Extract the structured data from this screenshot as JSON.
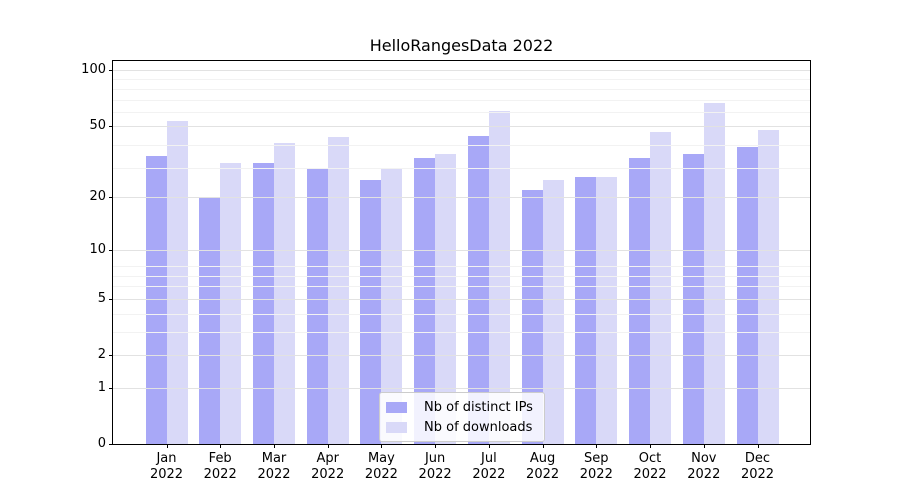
{
  "figure": {
    "title": "HelloRangesData 2022"
  },
  "chart_data": {
    "type": "bar",
    "title": "HelloRangesData 2022",
    "xlabel": "",
    "ylabel": "",
    "yscale": "log1p",
    "grid": true,
    "ylim": [
      0,
      112
    ],
    "y_ticks": [
      100,
      50,
      20,
      10,
      5,
      2,
      1,
      0
    ],
    "y_minor_gridlines": [
      3,
      4,
      6,
      7,
      8,
      29,
      39,
      59,
      69,
      79,
      89
    ],
    "categories": [
      "Jan",
      "Feb",
      "Mar",
      "Apr",
      "May",
      "Jun",
      "Jul",
      "Aug",
      "Sep",
      "Oct",
      "Nov",
      "Dec"
    ],
    "category_year": "2022",
    "series": [
      {
        "name": "Nb of distinct IPs",
        "color": "#a8a8f7",
        "values": [
          34,
          20,
          31,
          29,
          25,
          33,
          44,
          22,
          26,
          33,
          35,
          38
        ]
      },
      {
        "name": "Nb of downloads",
        "color": "#d9d9f8",
        "values": [
          53,
          31,
          40,
          43,
          29,
          35,
          60,
          25,
          26,
          46,
          66,
          47
        ]
      }
    ],
    "legend": {
      "position": "bottom-center",
      "items": [
        "Nb of distinct IPs",
        "Nb of downloads"
      ]
    }
  }
}
